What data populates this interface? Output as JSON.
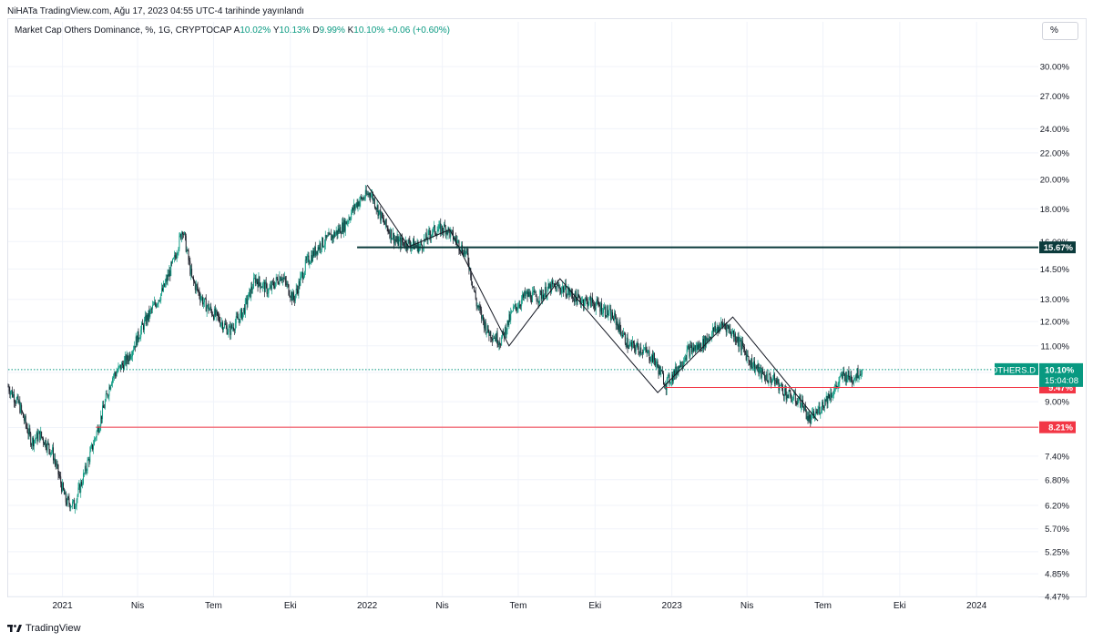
{
  "header": {
    "published_by": "NiHATa TradingView.com, Ağu 17, 2023 04:55 UTC-4 tarihinde yayınlandı"
  },
  "legend": {
    "title": "Market Cap Others Dominance, %, 1G, CRYPTOCAP",
    "o_label": "A",
    "o_value": "10.02%",
    "h_label": "Y",
    "h_value": "10.13%",
    "l_label": "D",
    "l_value": "9.99%",
    "c_label": "K",
    "c_value": "10.10%",
    "change": "+0.06 (+0.60%)"
  },
  "scale_button": "%",
  "footer": {
    "brand": "TradingView",
    "logo_icon": "tradingview-logo-icon"
  },
  "colors": {
    "up": "#089981",
    "down": "#131722",
    "resistance": "#0c3b3c",
    "support": "#f23645",
    "price_tag": "#089981",
    "grid": "#f0f3fa"
  },
  "chart_data": {
    "type": "candlestick",
    "y_scale": "log",
    "ylim": [
      4.47,
      33.0
    ],
    "y_ticks": [
      "30.00%",
      "27.00%",
      "24.00%",
      "22.00%",
      "20.00%",
      "18.00%",
      "16.00%",
      "14.50%",
      "13.00%",
      "12.00%",
      "11.00%",
      "10.00%",
      "9.00%",
      "8.20%",
      "7.40%",
      "6.80%",
      "6.20%",
      "5.70%",
      "5.25%",
      "4.85%",
      "4.47%"
    ],
    "x_ticks": [
      {
        "label": "2021",
        "date": "2021-01-01"
      },
      {
        "label": "Nis",
        "date": "2021-04-01"
      },
      {
        "label": "Tem",
        "date": "2021-07-01"
      },
      {
        "label": "Eki",
        "date": "2021-10-01"
      },
      {
        "label": "2022",
        "date": "2022-01-01"
      },
      {
        "label": "Nis",
        "date": "2022-04-01"
      },
      {
        "label": "Tem",
        "date": "2022-07-01"
      },
      {
        "label": "Eki",
        "date": "2022-10-01"
      },
      {
        "label": "2023",
        "date": "2023-01-01"
      },
      {
        "label": "Nis",
        "date": "2023-04-01"
      },
      {
        "label": "Tem",
        "date": "2023-07-01"
      },
      {
        "label": "Eki",
        "date": "2023-10-01"
      },
      {
        "label": "2024",
        "date": "2024-01-01"
      }
    ],
    "xlim": [
      "2020-10-28",
      "2024-03-15"
    ],
    "price_path": [
      [
        "2020-10-28",
        9.5
      ],
      [
        "2020-11-10",
        8.9
      ],
      [
        "2020-11-25",
        7.8
      ],
      [
        "2020-12-05",
        8.0
      ],
      [
        "2020-12-20",
        7.5
      ],
      [
        "2021-01-05",
        6.3
      ],
      [
        "2021-01-15",
        6.2
      ],
      [
        "2021-01-28",
        7.0
      ],
      [
        "2021-02-15",
        8.4
      ],
      [
        "2021-03-01",
        9.8
      ],
      [
        "2021-03-20",
        10.5
      ],
      [
        "2021-04-10",
        12.0
      ],
      [
        "2021-05-01",
        13.4
      ],
      [
        "2021-05-15",
        15.0
      ],
      [
        "2021-05-25",
        16.8
      ],
      [
        "2021-06-05",
        14.0
      ],
      [
        "2021-06-20",
        12.8
      ],
      [
        "2021-07-05",
        12.2
      ],
      [
        "2021-07-20",
        11.6
      ],
      [
        "2021-08-05",
        12.4
      ],
      [
        "2021-08-20",
        14.0
      ],
      [
        "2021-09-05",
        13.4
      ],
      [
        "2021-09-20",
        14.2
      ],
      [
        "2021-10-05",
        13.0
      ],
      [
        "2021-10-20",
        14.8
      ],
      [
        "2021-11-05",
        15.8
      ],
      [
        "2021-11-20",
        16.3
      ],
      [
        "2021-12-05",
        17.0
      ],
      [
        "2021-12-20",
        18.4
      ],
      [
        "2022-01-05",
        19.1
      ],
      [
        "2022-01-20",
        17.2
      ],
      [
        "2022-02-05",
        16.0
      ],
      [
        "2022-02-20",
        15.9
      ],
      [
        "2022-03-05",
        15.7
      ],
      [
        "2022-03-20",
        16.6
      ],
      [
        "2022-04-05",
        16.8
      ],
      [
        "2022-04-20",
        15.9
      ],
      [
        "2022-05-01",
        15.2
      ],
      [
        "2022-05-12",
        12.8
      ],
      [
        "2022-05-25",
        11.6
      ],
      [
        "2022-06-10",
        11.2
      ],
      [
        "2022-06-25",
        12.5
      ],
      [
        "2022-07-10",
        13.2
      ],
      [
        "2022-07-25",
        13.1
      ],
      [
        "2022-08-10",
        13.6
      ],
      [
        "2022-08-25",
        13.5
      ],
      [
        "2022-09-10",
        13.0
      ],
      [
        "2022-09-25",
        12.9
      ],
      [
        "2022-10-10",
        12.6
      ],
      [
        "2022-10-25",
        12.1
      ],
      [
        "2022-11-10",
        11.0
      ],
      [
        "2022-11-25",
        10.9
      ],
      [
        "2022-12-10",
        10.5
      ],
      [
        "2022-12-25",
        9.6
      ],
      [
        "2023-01-05",
        10.0
      ],
      [
        "2023-01-20",
        10.8
      ],
      [
        "2023-02-05",
        11.0
      ],
      [
        "2023-02-20",
        11.6
      ],
      [
        "2023-03-05",
        11.9
      ],
      [
        "2023-03-20",
        11.3
      ],
      [
        "2023-04-05",
        10.4
      ],
      [
        "2023-04-20",
        9.9
      ],
      [
        "2023-05-05",
        9.7
      ],
      [
        "2023-05-20",
        9.2
      ],
      [
        "2023-06-05",
        9.0
      ],
      [
        "2023-06-15",
        8.4
      ],
      [
        "2023-06-25",
        8.7
      ],
      [
        "2023-07-05",
        9.1
      ],
      [
        "2023-07-15",
        9.4
      ],
      [
        "2023-07-25",
        9.9
      ],
      [
        "2023-08-05",
        9.8
      ],
      [
        "2023-08-17",
        10.1
      ]
    ],
    "candle_start": "2020-10-28",
    "candle_end": "2023-08-17",
    "last_price": 10.1,
    "horizontal_levels": [
      {
        "value": 15.67,
        "label": "15.67%",
        "start": "2021-12-20",
        "color": "resistance"
      },
      {
        "value": 9.47,
        "label": "9.47%",
        "start": "2022-12-25",
        "color": "support"
      },
      {
        "value": 8.21,
        "label": "8.21%",
        "start": "2021-02-10",
        "color": "support"
      }
    ],
    "trend_lines": [
      [
        [
          "2022-01-01",
          19.6
        ],
        [
          "2022-02-20",
          15.7
        ],
        [
          "2022-04-10",
          16.7
        ],
        [
          "2022-06-20",
          11.0
        ],
        [
          "2022-08-20",
          14.0
        ],
        [
          "2022-12-15",
          9.3
        ],
        [
          "2023-03-15",
          12.2
        ],
        [
          "2023-06-25",
          8.4
        ]
      ]
    ],
    "price_tag": {
      "symbol": "OTHERS.D",
      "price": "10.10%",
      "countdown": "15:04:08"
    }
  }
}
